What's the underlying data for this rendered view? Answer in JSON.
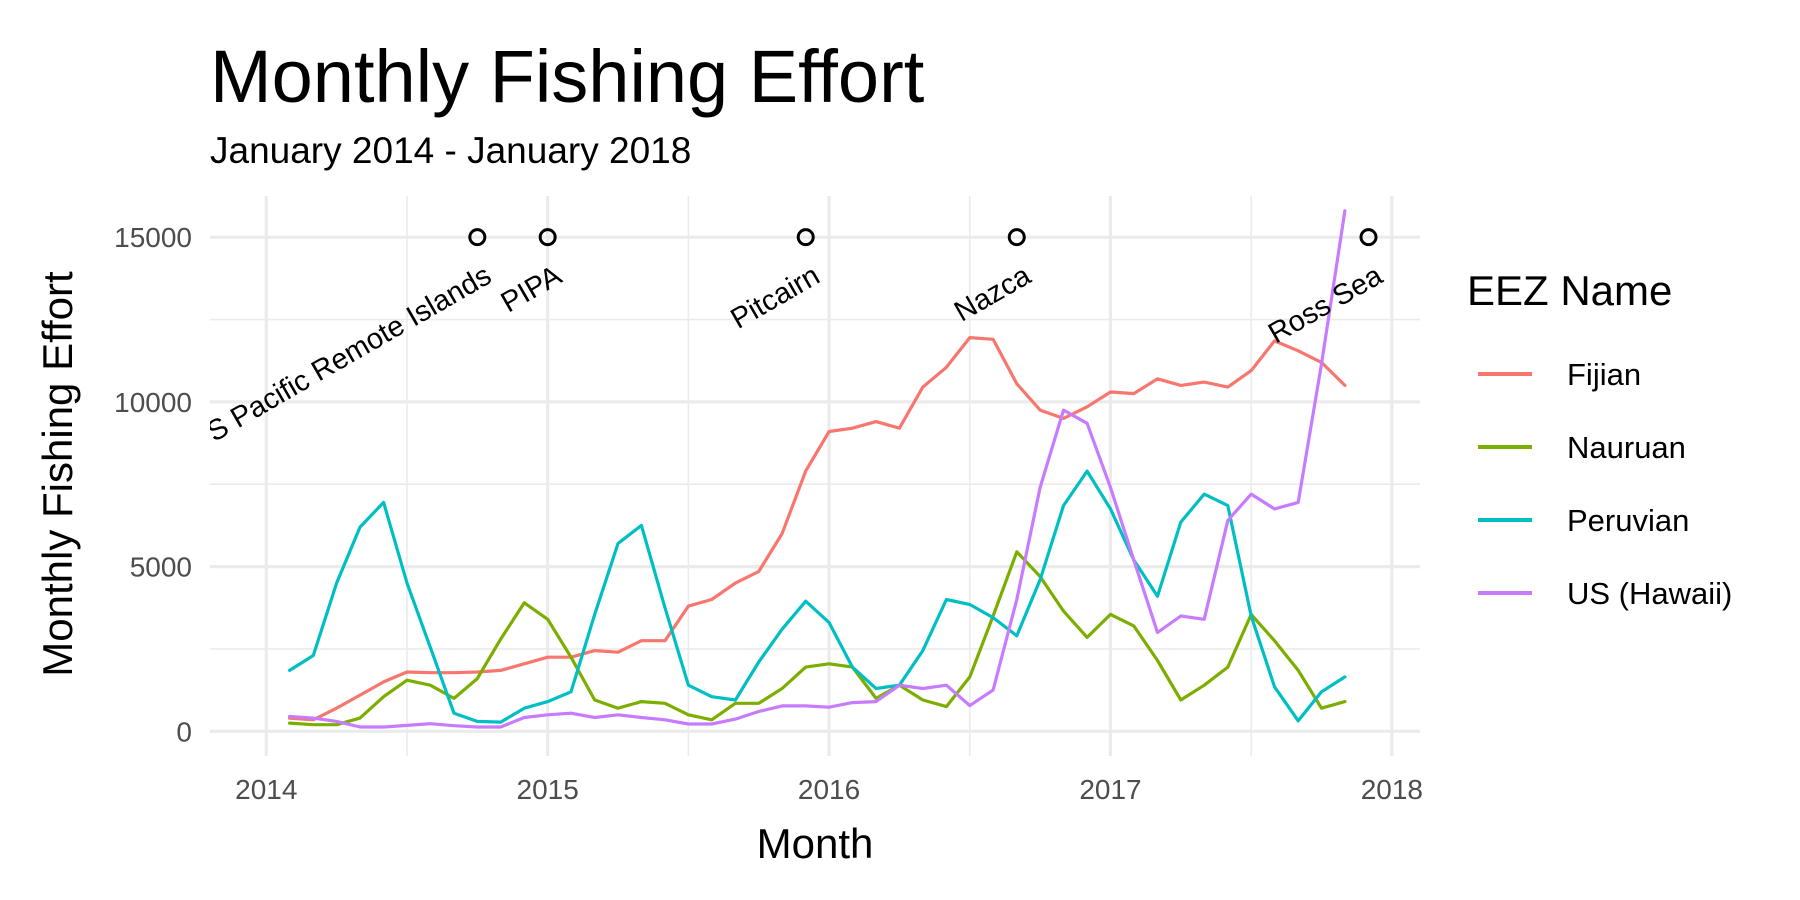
{
  "chart_data": {
    "type": "line",
    "title": "Monthly Fishing Effort",
    "subtitle": "January 2014 - January 2018",
    "xlabel": "Month",
    "ylabel": "Monthly Fishing Effort",
    "xlim": [
      2013.8,
      2018.1
    ],
    "ylim": [
      -750,
      16250
    ],
    "x_ticks": [
      2014,
      2015,
      2016,
      2017,
      2018
    ],
    "x_tick_labels": [
      "2014",
      "2015",
      "2016",
      "2017",
      "2018"
    ],
    "y_ticks": [
      0,
      5000,
      10000,
      15000
    ],
    "y_tick_labels": [
      "0",
      "5000",
      "10000",
      "15000"
    ],
    "grid": true,
    "legend": {
      "title": "EEZ Name",
      "position": "right"
    },
    "x": [
      2014.083,
      2014.167,
      2014.25,
      2014.333,
      2014.417,
      2014.5,
      2014.583,
      2014.667,
      2014.75,
      2014.833,
      2014.917,
      2015.0,
      2015.083,
      2015.167,
      2015.25,
      2015.333,
      2015.417,
      2015.5,
      2015.583,
      2015.667,
      2015.75,
      2015.833,
      2015.917,
      2016.0,
      2016.083,
      2016.167,
      2016.25,
      2016.333,
      2016.417,
      2016.5,
      2016.583,
      2016.667,
      2016.75,
      2016.833,
      2016.917,
      2017.0,
      2017.083,
      2017.167,
      2017.25,
      2017.333,
      2017.417,
      2017.5,
      2017.583,
      2017.667,
      2017.75,
      2017.833
    ],
    "series": [
      {
        "name": "Fijian",
        "color": "#F8766D",
        "values": [
          400,
          350,
          700,
          1100,
          1500,
          1800,
          1780,
          1780,
          1800,
          1850,
          2050,
          2250,
          2250,
          2450,
          2400,
          2750,
          2750,
          3800,
          4000,
          4500,
          4850,
          6000,
          7900,
          9100,
          9200,
          9400,
          9200,
          10450,
          11050,
          11950,
          11900,
          10550,
          9750,
          9500,
          9850,
          10300,
          10250,
          10700,
          10500,
          10600,
          10450,
          10950,
          11850,
          11550,
          11200,
          10500
        ]
      },
      {
        "name": "Nauruan",
        "color": "#7CAE00",
        "values": [
          250,
          200,
          200,
          400,
          1050,
          1550,
          1400,
          1000,
          1600,
          2800,
          3900,
          3400,
          2250,
          950,
          700,
          900,
          850,
          500,
          350,
          850,
          850,
          1300,
          1950,
          2050,
          1950,
          1000,
          1400,
          950,
          750,
          1650,
          3500,
          5450,
          4700,
          3650,
          2850,
          3550,
          3200,
          2150,
          950,
          1400,
          1950,
          3550,
          2750,
          1850,
          700,
          900
        ]
      },
      {
        "name": "Peruvian",
        "color": "#00BFC4",
        "values": [
          1850,
          2300,
          4500,
          6200,
          6950,
          4500,
          2550,
          550,
          300,
          280,
          700,
          900,
          1200,
          3550,
          5700,
          6250,
          3750,
          1400,
          1050,
          950,
          2100,
          3100,
          3950,
          3300,
          1950,
          1300,
          1400,
          2450,
          4000,
          3850,
          3450,
          2900,
          4600,
          6850,
          7900,
          6750,
          5200,
          4100,
          6350,
          7200,
          6850,
          3500,
          1350,
          320,
          1200,
          1650
        ]
      },
      {
        "name": "US (Hawaii)",
        "color": "#C77CFF",
        "values": [
          450,
          400,
          300,
          130,
          130,
          180,
          230,
          170,
          130,
          130,
          420,
          500,
          550,
          420,
          500,
          420,
          350,
          220,
          220,
          370,
          600,
          770,
          770,
          730,
          870,
          900,
          1400,
          1300,
          1400,
          780,
          1250,
          4000,
          7400,
          9750,
          9350,
          7400,
          5200,
          3000,
          3500,
          3400,
          6400,
          7200,
          6750,
          6950,
          11150,
          15800
        ]
      }
    ],
    "annotations": [
      {
        "text": "US Pacific Remote Islands",
        "x": 2014.75,
        "y": 15000
      },
      {
        "text": "PIPA",
        "x": 2015.0,
        "y": 15000
      },
      {
        "text": "Pitcairn",
        "x": 2015.917,
        "y": 15000
      },
      {
        "text": "Nazca",
        "x": 2016.667,
        "y": 15000
      },
      {
        "text": "Ross Sea",
        "x": 2017.917,
        "y": 15000
      }
    ]
  }
}
